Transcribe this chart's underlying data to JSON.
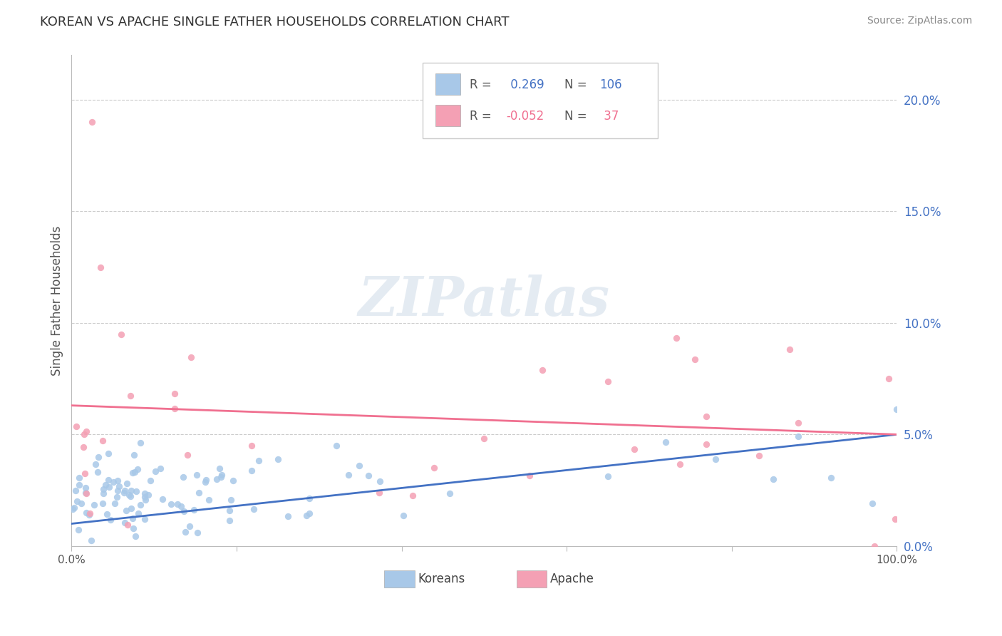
{
  "title": "KOREAN VS APACHE SINGLE FATHER HOUSEHOLDS CORRELATION CHART",
  "source": "Source: ZipAtlas.com",
  "ylabel": "Single Father Households",
  "xlim": [
    0.0,
    1.0
  ],
  "ylim": [
    0.0,
    0.22
  ],
  "ytick_labels": [
    "0.0%",
    "5.0%",
    "10.0%",
    "15.0%",
    "20.0%"
  ],
  "ytick_vals": [
    0.0,
    0.05,
    0.1,
    0.15,
    0.2
  ],
  "xtick_positions": [
    0.0,
    0.2,
    0.4,
    0.6,
    0.8,
    1.0
  ],
  "xtick_labels": [
    "0.0%",
    "",
    "",
    "",
    "",
    "100.0%"
  ],
  "korean_R": 0.269,
  "korean_N": 106,
  "apache_R": -0.052,
  "apache_N": 37,
  "korean_color": "#a8c8e8",
  "apache_color": "#f4a0b4",
  "korean_line_color": "#4472c4",
  "apache_line_color": "#f07090",
  "legend_label_korean": "Koreans",
  "legend_label_apache": "Apache",
  "watermark": "ZIPatlas",
  "background_color": "#ffffff",
  "grid_color": "#cccccc",
  "title_color": "#333333",
  "source_color": "#888888",
  "ylabel_color": "#555555",
  "ytick_color": "#4472c4",
  "xtick_color": "#555555"
}
